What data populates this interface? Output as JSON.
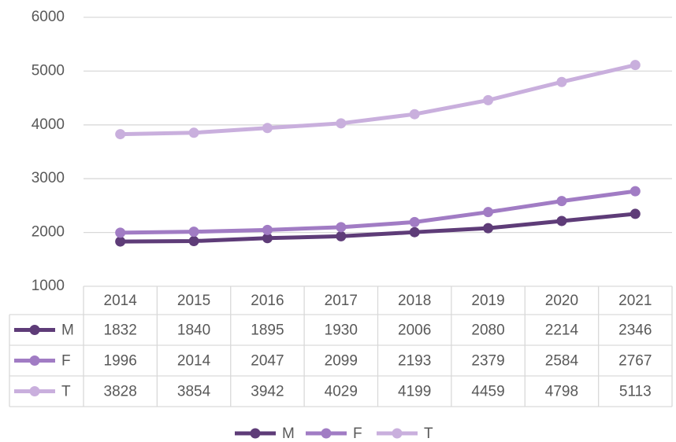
{
  "chart_data": {
    "type": "line",
    "categories": [
      "2014",
      "2015",
      "2016",
      "2017",
      "2018",
      "2019",
      "2020",
      "2021"
    ],
    "series": [
      {
        "name": "M",
        "color": "#5e3c78",
        "values": [
          1832,
          1840,
          1895,
          1930,
          2006,
          2080,
          2214,
          2346
        ]
      },
      {
        "name": "F",
        "color": "#a17cc4",
        "values": [
          1996,
          2014,
          2047,
          2099,
          2193,
          2379,
          2584,
          2767
        ]
      },
      {
        "name": "T",
        "color": "#c9afdd",
        "values": [
          3828,
          3854,
          3942,
          4029,
          4199,
          4459,
          4798,
          5113
        ]
      }
    ],
    "ylim": [
      1000,
      6000
    ],
    "yticks": [
      1000,
      2000,
      3000,
      4000,
      5000,
      6000
    ],
    "grid": true,
    "legend": "bottom"
  }
}
